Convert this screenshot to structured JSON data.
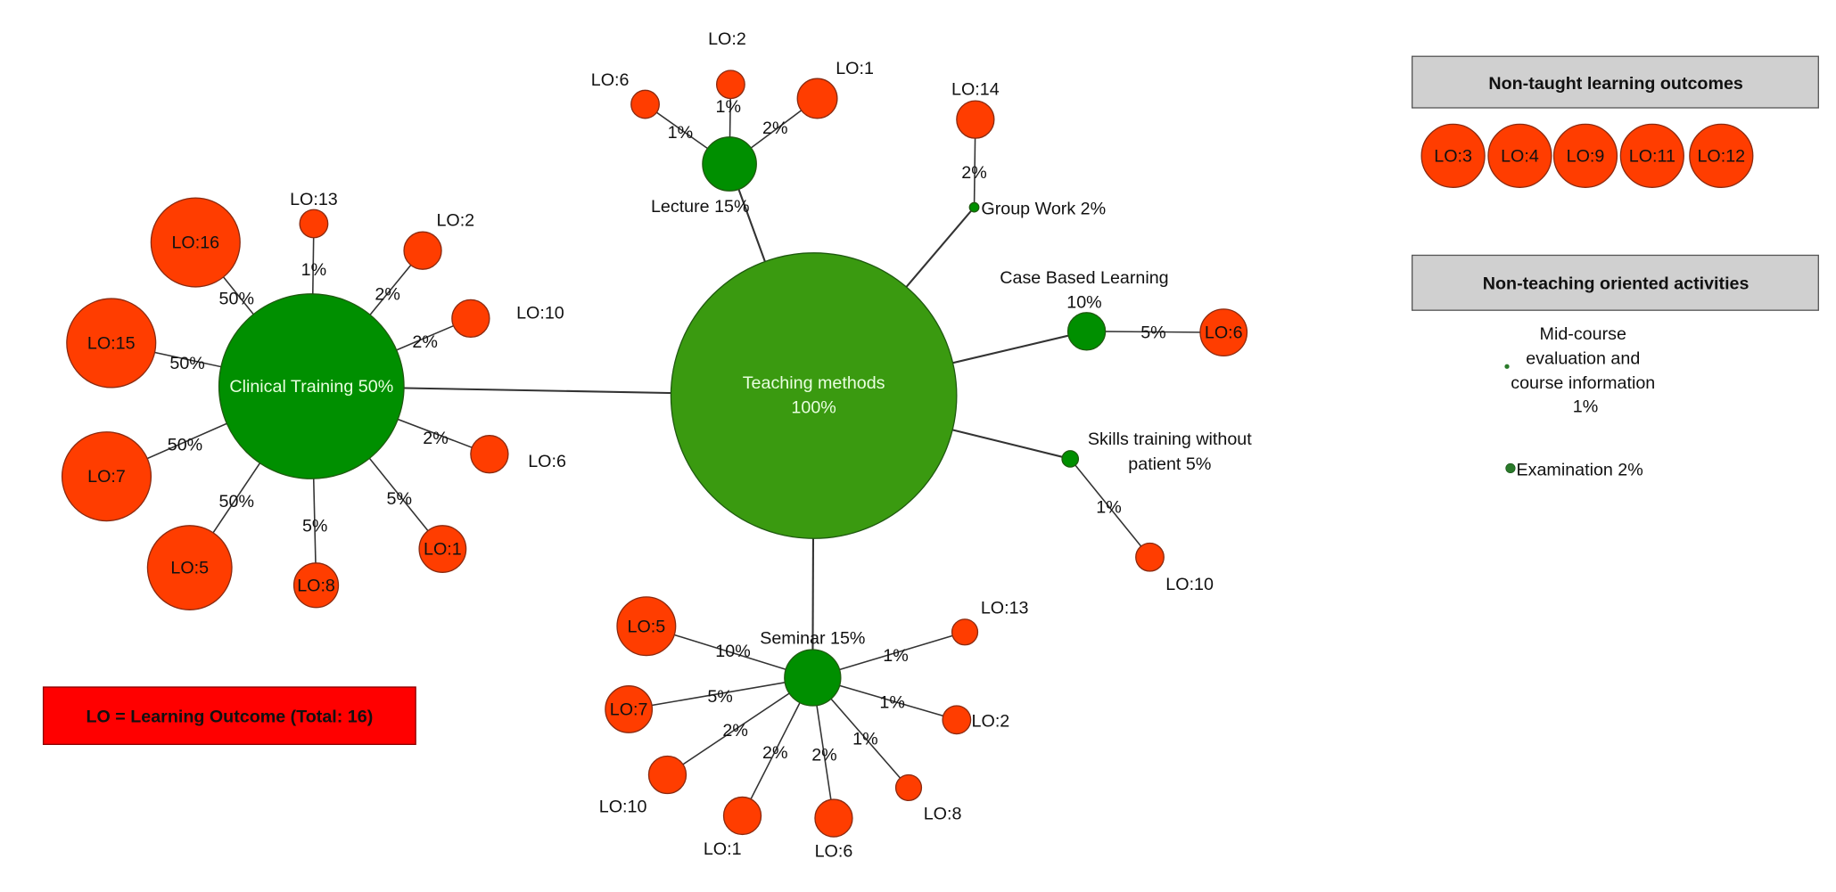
{
  "colors": {
    "hub": "#3a9a10",
    "method": "#008f00",
    "outcome": "#ff3d00",
    "outcome_border": "#8a2a10",
    "legend": "#ff0000",
    "panel": "#d0d0d0",
    "edge": "#333333"
  },
  "nodes": [
    {
      "id": "tm",
      "kind": "hub",
      "lines": [
        "Teaching methods",
        "100%"
      ]
    },
    {
      "id": "ct",
      "kind": "method",
      "lines": [
        "Clinical Training 50%"
      ]
    },
    {
      "id": "lec",
      "kind": "method",
      "lines": [
        "Lecture 15%"
      ]
    },
    {
      "id": "gw",
      "kind": "method",
      "lines": [
        "Group Work 2%"
      ]
    },
    {
      "id": "cbl",
      "kind": "method",
      "lines": [
        "Case Based Learning",
        "10%"
      ]
    },
    {
      "id": "st",
      "kind": "method",
      "lines": [
        "Skills training without",
        "patient 5%"
      ]
    },
    {
      "id": "sem",
      "kind": "method",
      "lines": [
        "Seminar 15%"
      ]
    },
    {
      "id": "ct16",
      "kind": "lo",
      "lines": [
        "LO:16"
      ]
    },
    {
      "id": "ct13",
      "kind": "lo",
      "lines": [
        "LO:13"
      ]
    },
    {
      "id": "ct2",
      "kind": "lo",
      "lines": [
        "LO:2"
      ]
    },
    {
      "id": "ct10",
      "kind": "lo",
      "lines": [
        "LO:10"
      ]
    },
    {
      "id": "ct15",
      "kind": "lo",
      "lines": [
        "LO:15"
      ]
    },
    {
      "id": "ct7",
      "kind": "lo",
      "lines": [
        "LO:7"
      ]
    },
    {
      "id": "ct5",
      "kind": "lo",
      "lines": [
        "LO:5"
      ]
    },
    {
      "id": "ct8",
      "kind": "lo",
      "lines": [
        "LO:8"
      ]
    },
    {
      "id": "ct1",
      "kind": "lo",
      "lines": [
        "LO:1"
      ]
    },
    {
      "id": "ct6",
      "kind": "lo",
      "lines": [
        "LO:6"
      ]
    },
    {
      "id": "lec6",
      "kind": "lo",
      "lines": [
        "LO:6"
      ]
    },
    {
      "id": "lec2",
      "kind": "lo",
      "lines": [
        "LO:2"
      ]
    },
    {
      "id": "lec1",
      "kind": "lo",
      "lines": [
        "LO:1"
      ]
    },
    {
      "id": "gw14",
      "kind": "lo",
      "lines": [
        "LO:14"
      ]
    },
    {
      "id": "cbl6",
      "kind": "lo",
      "lines": [
        "LO:6"
      ]
    },
    {
      "id": "st10",
      "kind": "lo",
      "lines": [
        "LO:10"
      ]
    },
    {
      "id": "sem5",
      "kind": "lo",
      "lines": [
        "LO:5"
      ]
    },
    {
      "id": "sem13",
      "kind": "lo",
      "lines": [
        "LO:13"
      ]
    },
    {
      "id": "sem7",
      "kind": "lo",
      "lines": [
        "LO:7"
      ]
    },
    {
      "id": "sem2",
      "kind": "lo",
      "lines": [
        "LO:2"
      ]
    },
    {
      "id": "sem10",
      "kind": "lo",
      "lines": [
        "LO:10"
      ]
    },
    {
      "id": "sem8",
      "kind": "lo",
      "lines": [
        "LO:8"
      ]
    },
    {
      "id": "sem1",
      "kind": "lo",
      "lines": [
        "LO:1"
      ]
    },
    {
      "id": "sem6",
      "kind": "lo",
      "lines": [
        "LO:6"
      ]
    }
  ],
  "edges": [
    {
      "from": "tm",
      "to": "ct",
      "label": ""
    },
    {
      "from": "tm",
      "to": "lec",
      "label": ""
    },
    {
      "from": "tm",
      "to": "gw",
      "label": ""
    },
    {
      "from": "tm",
      "to": "cbl",
      "label": ""
    },
    {
      "from": "tm",
      "to": "st",
      "label": ""
    },
    {
      "from": "tm",
      "to": "sem",
      "label": ""
    },
    {
      "from": "ct",
      "to": "ct16",
      "label": "50%"
    },
    {
      "from": "ct",
      "to": "ct13",
      "label": "1%"
    },
    {
      "from": "ct",
      "to": "ct2",
      "label": "2%"
    },
    {
      "from": "ct",
      "to": "ct10",
      "label": "2%"
    },
    {
      "from": "ct",
      "to": "ct15",
      "label": "50%"
    },
    {
      "from": "ct",
      "to": "ct7",
      "label": "50%"
    },
    {
      "from": "ct",
      "to": "ct5",
      "label": "50%"
    },
    {
      "from": "ct",
      "to": "ct8",
      "label": "5%"
    },
    {
      "from": "ct",
      "to": "ct1",
      "label": "5%"
    },
    {
      "from": "ct",
      "to": "ct6",
      "label": "2%"
    },
    {
      "from": "lec",
      "to": "lec6",
      "label": "1%"
    },
    {
      "from": "lec",
      "to": "lec2",
      "label": "1%"
    },
    {
      "from": "lec",
      "to": "lec1",
      "label": "2%"
    },
    {
      "from": "gw",
      "to": "gw14",
      "label": "2%"
    },
    {
      "from": "cbl",
      "to": "cbl6",
      "label": "5%"
    },
    {
      "from": "st",
      "to": "st10",
      "label": "1%"
    },
    {
      "from": "sem",
      "to": "sem5",
      "label": "10%"
    },
    {
      "from": "sem",
      "to": "sem13",
      "label": "1%"
    },
    {
      "from": "sem",
      "to": "sem7",
      "label": "5%"
    },
    {
      "from": "sem",
      "to": "sem2",
      "label": "1%"
    },
    {
      "from": "sem",
      "to": "sem10",
      "label": "2%"
    },
    {
      "from": "sem",
      "to": "sem8",
      "label": "1%"
    },
    {
      "from": "sem",
      "to": "sem1",
      "label": "2%"
    },
    {
      "from": "sem",
      "to": "sem6",
      "label": "2%"
    }
  ],
  "non_taught": {
    "title": "Non-taught learning outcomes",
    "items": [
      "LO:3",
      "LO:4",
      "LO:9",
      "LO:11",
      "LO:12"
    ]
  },
  "non_teaching": {
    "title": "Non-teaching oriented activities",
    "activities": [
      {
        "lines": [
          "Mid-course",
          "evaluation and",
          "course information",
          "1%"
        ]
      },
      {
        "lines": [
          "Examination 2%"
        ]
      }
    ]
  },
  "legend": {
    "text": "LO = Learning Outcome (Total: 16)"
  }
}
